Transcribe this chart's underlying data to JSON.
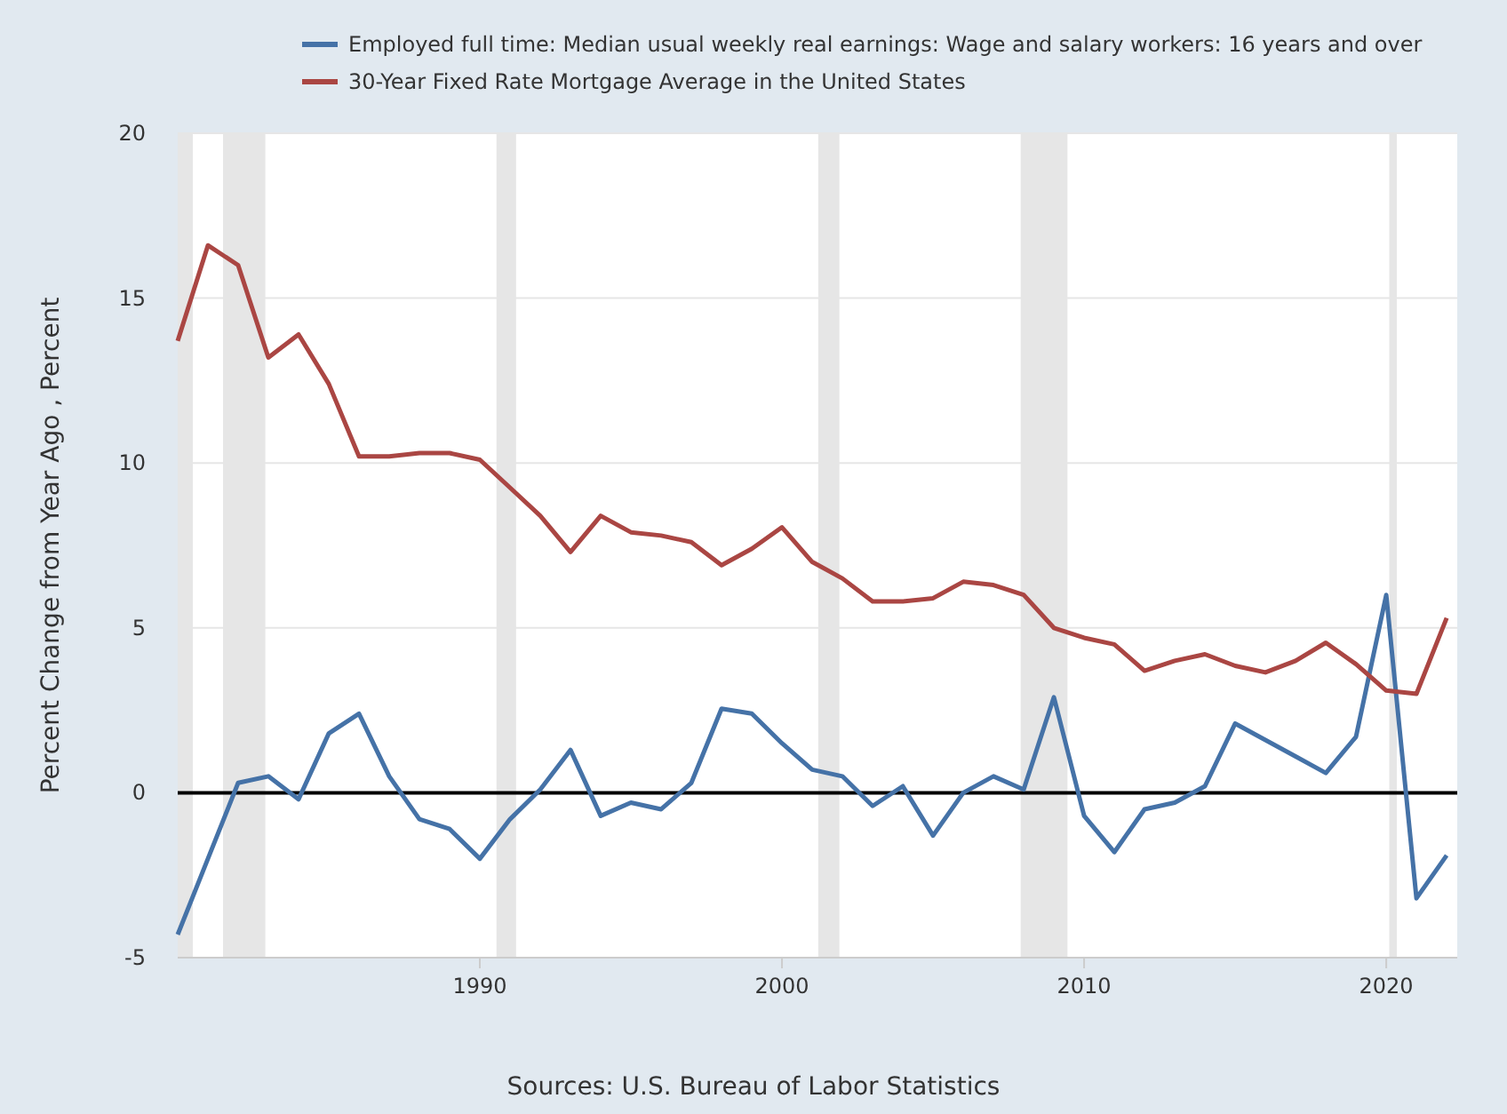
{
  "chart_data": {
    "type": "line",
    "ylabel": "Percent Change from Year Ago , Percent",
    "x": [
      1980,
      1981,
      1982,
      1983,
      1984,
      1985,
      1986,
      1987,
      1988,
      1989,
      1990,
      1991,
      1992,
      1993,
      1994,
      1995,
      1996,
      1997,
      1998,
      1999,
      2000,
      2001,
      2002,
      2003,
      2004,
      2005,
      2006,
      2007,
      2008,
      2009,
      2010,
      2011,
      2012,
      2013,
      2014,
      2015,
      2016,
      2017,
      2018,
      2019,
      2020,
      2021,
      2022
    ],
    "series": [
      {
        "name": "Employed full time: Median usual weekly real earnings: Wage and salary workers: 16 years and over",
        "color": "#4572a7",
        "values": [
          -4.3,
          -2.0,
          0.3,
          0.5,
          -0.2,
          1.8,
          2.4,
          0.5,
          -0.8,
          -1.1,
          -2.0,
          -0.8,
          0.1,
          1.3,
          -0.7,
          -0.3,
          -0.5,
          0.3,
          2.55,
          2.4,
          1.5,
          0.7,
          0.5,
          -0.4,
          0.2,
          -1.3,
          0.0,
          0.5,
          0.1,
          2.9,
          -0.7,
          -1.8,
          -0.5,
          -0.3,
          0.2,
          2.1,
          1.6,
          1.1,
          0.6,
          1.7,
          6.0,
          -3.2,
          -1.9
        ]
      },
      {
        "name": "30-Year Fixed Rate Mortgage Average in the United States",
        "color": "#aa4643",
        "values": [
          13.7,
          16.6,
          16.0,
          13.2,
          13.9,
          12.4,
          10.2,
          10.2,
          10.3,
          10.3,
          10.1,
          9.25,
          8.4,
          7.3,
          8.4,
          7.9,
          7.8,
          7.6,
          6.9,
          7.4,
          8.05,
          7.0,
          6.5,
          5.8,
          5.8,
          5.9,
          6.4,
          6.3,
          6.0,
          5.0,
          4.7,
          4.5,
          3.7,
          4.0,
          4.2,
          3.85,
          3.65,
          4.0,
          4.55,
          3.9,
          3.1,
          3.0,
          5.3
        ]
      }
    ],
    "xlim": [
      1980,
      2022.35
    ],
    "xticks": [
      1990,
      2000,
      2010,
      2020
    ],
    "ylim": [
      -5,
      20
    ],
    "yticks": [
      -5,
      0,
      5,
      10,
      15,
      20
    ],
    "grid": "y",
    "legend": "top",
    "line_style": "solid",
    "ref_lines": [
      {
        "axis": "y",
        "value": 0,
        "color": "#000000"
      }
    ],
    "bands": [
      {
        "axis": "x",
        "from": 1980.0,
        "to": 1980.5,
        "color": "#e6e6e6"
      },
      {
        "axis": "x",
        "from": 1981.5,
        "to": 1982.9,
        "color": "#e6e6e6"
      },
      {
        "axis": "x",
        "from": 1990.55,
        "to": 1991.2,
        "color": "#e6e6e6"
      },
      {
        "axis": "x",
        "from": 2001.2,
        "to": 2001.9,
        "color": "#e6e6e6"
      },
      {
        "axis": "x",
        "from": 2007.9,
        "to": 2009.45,
        "color": "#e6e6e6"
      },
      {
        "axis": "x",
        "from": 2020.1,
        "to": 2020.35,
        "color": "#e6e6e6"
      }
    ],
    "annotations": [
      "Sources: U.S. Bureau of Labor Statistics"
    ]
  }
}
